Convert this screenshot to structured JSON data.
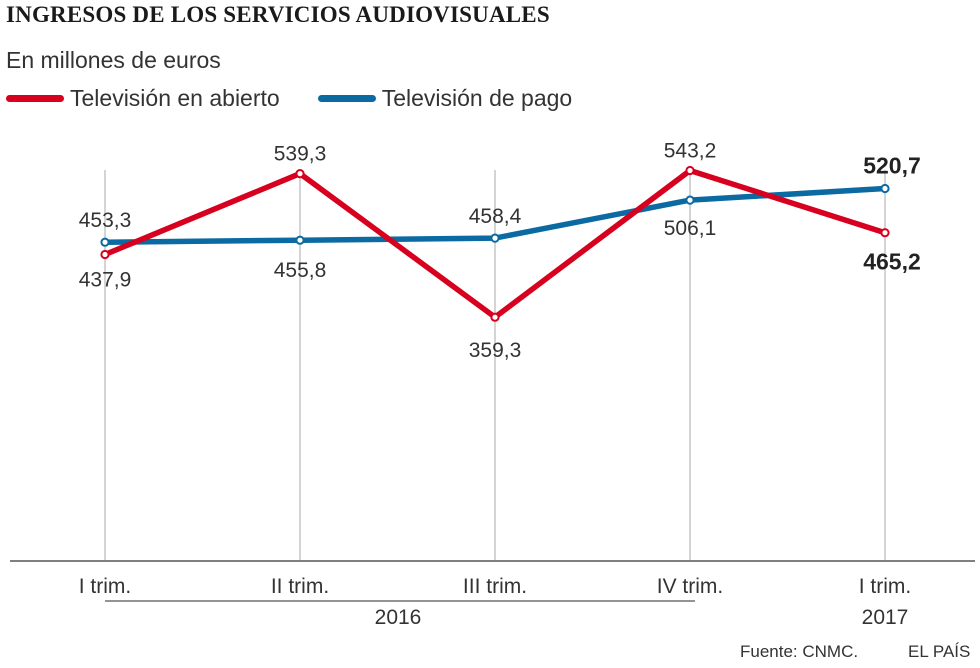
{
  "header": {
    "title": "INGRESOS DE LOS SERVICIOS AUDIOVISUALES",
    "subtitle": "En millones de euros"
  },
  "footer": {
    "source": "Fuente: CNMC.",
    "brand": "EL PAÍS"
  },
  "colors": {
    "open_tv": "#d7001f",
    "pay_tv": "#0b6aa2",
    "grid": "#bdbdbd",
    "text": "#333333"
  },
  "chart_data": {
    "type": "line",
    "title": "INGRESOS DE LOS SERVICIOS AUDIOVISUALES",
    "subtitle": "En millones de euros",
    "categories": [
      "I trim.",
      "II trim.",
      "III trim.",
      "IV trim.",
      "I trim."
    ],
    "year_groups": [
      {
        "label": "2016",
        "from": 0,
        "to": 3
      },
      {
        "label": "2017",
        "from": 4,
        "to": 4
      }
    ],
    "series": [
      {
        "name": "Televisión en abierto",
        "color": "#d7001f",
        "values": [
          437.9,
          539.3,
          359.3,
          543.2,
          465.2
        ],
        "labels": [
          "437,9",
          "539,3",
          "359,3",
          "543,2",
          "465,2"
        ]
      },
      {
        "name": "Televisión de pago",
        "color": "#0b6aa2",
        "values": [
          453.3,
          455.8,
          458.4,
          506.1,
          520.7
        ],
        "labels": [
          "453,3",
          "455,8",
          "458,4",
          "506,1",
          "520,7"
        ]
      }
    ],
    "legend_position": "top-left",
    "grid": "vertical",
    "xlabel": "",
    "ylabel": ""
  }
}
